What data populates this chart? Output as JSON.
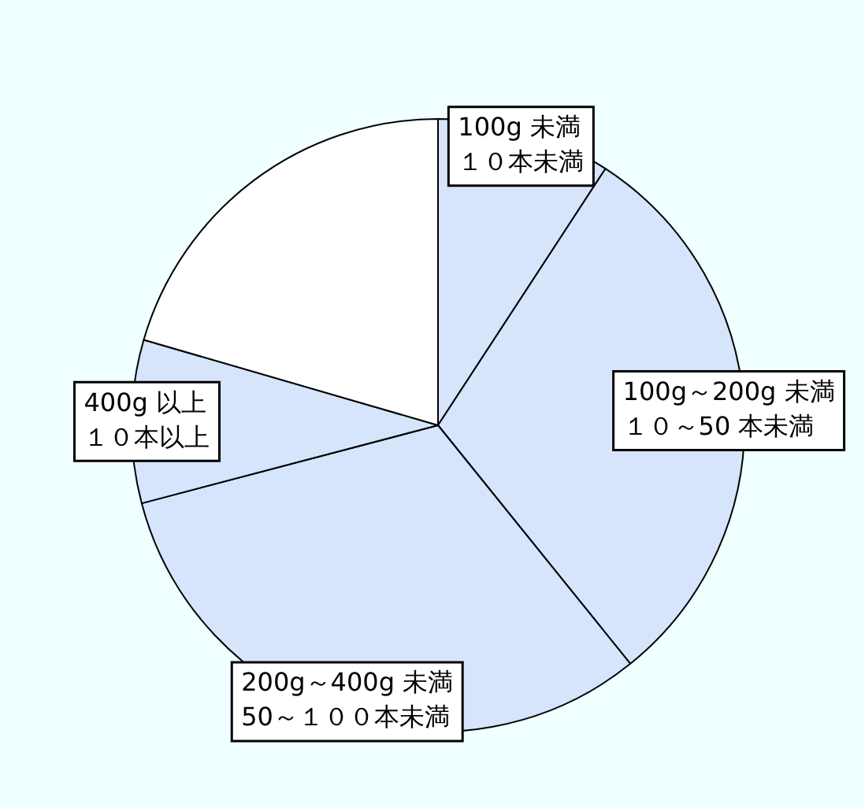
{
  "chart_data": {
    "type": "pie",
    "categories": [
      "100g 未満１０本未満",
      "100g～200g 未満１０～50 本未満",
      "200g～400g 未満50～１００本未満",
      "400g 以上１０本以上",
      null
    ],
    "values": [
      9.2,
      30,
      31.7,
      8.6,
      20.5
    ],
    "colors": [
      "#d6e4fc",
      "#d6e4fc",
      "#d6e4fc",
      "#d6e4fc",
      "#ffffff"
    ],
    "legend": false
  }
}
